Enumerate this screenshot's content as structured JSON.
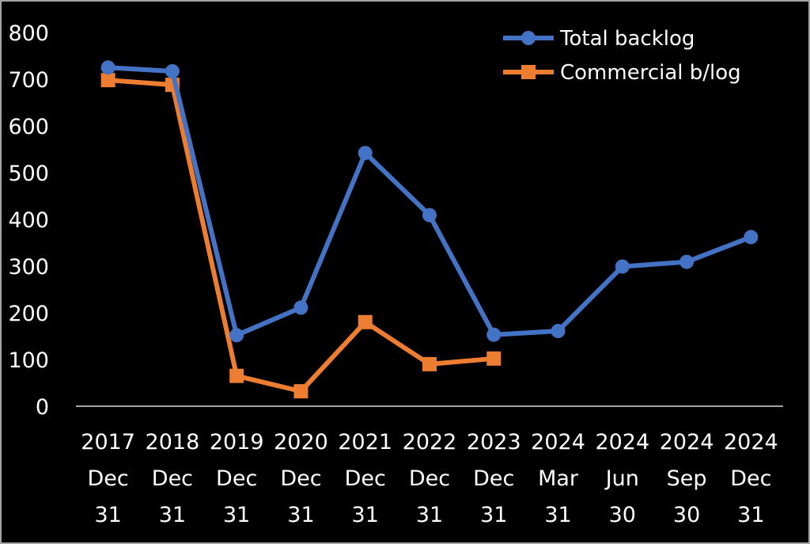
{
  "chart_data": {
    "type": "line",
    "categories": [
      [
        "2017",
        "Dec",
        "31"
      ],
      [
        "2018",
        "Dec",
        "31"
      ],
      [
        "2019",
        "Dec",
        "31"
      ],
      [
        "2020",
        "Dec",
        "31"
      ],
      [
        "2021",
        "Dec",
        "31"
      ],
      [
        "2022",
        "Dec",
        "31"
      ],
      [
        "2023",
        "Dec",
        "31"
      ],
      [
        "2024",
        "Mar",
        "31"
      ],
      [
        "2024",
        "Jun",
        "30"
      ],
      [
        "2024",
        "Sep",
        "30"
      ],
      [
        "2024",
        "Dec",
        "31"
      ]
    ],
    "series": [
      {
        "name": "Total backlog",
        "color": "#4472c4",
        "marker": "circle",
        "values": [
          725,
          717,
          152,
          211,
          542,
          409,
          153,
          161,
          299,
          309,
          362
        ]
      },
      {
        "name": "Commercial b/log",
        "color": "#ed7d31",
        "marker": "square",
        "values": [
          698,
          688,
          65,
          32,
          180,
          90,
          102,
          null,
          null,
          null,
          null
        ]
      }
    ],
    "ylim": [
      0,
      800
    ],
    "yticks": [
      "0",
      "100",
      "200",
      "300",
      "400",
      "500",
      "600",
      "700",
      "800"
    ],
    "grid": false,
    "legend_position": "top-right",
    "xlabel": "",
    "ylabel": "",
    "title": ""
  }
}
